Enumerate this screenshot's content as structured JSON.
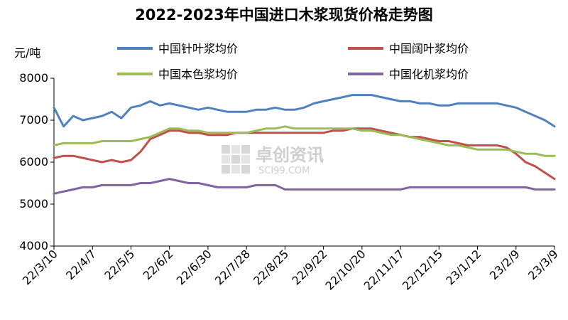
{
  "chart_data": {
    "type": "line",
    "title": "2022-2023年中国进口木浆现货价格走势图",
    "ylabel": "元/吨",
    "ylim": [
      4000,
      8000
    ],
    "yticks": [
      "8000",
      "7000",
      "6000",
      "5000",
      "4000"
    ],
    "xticks": [
      "22/3/10",
      "22/4/7",
      "22/5/5",
      "22/6/2",
      "22/6/30",
      "22/7/28",
      "22/8/25",
      "22/9/22",
      "22/10/20",
      "22/11/17",
      "22/12/15",
      "23/1/12",
      "23/2/9",
      "23/3/9"
    ],
    "grid": false,
    "legend_position": "top",
    "x": [
      "22/3/10",
      "22/3/17",
      "22/3/24",
      "22/3/31",
      "22/4/7",
      "22/4/14",
      "22/4/21",
      "22/4/28",
      "22/5/5",
      "22/5/12",
      "22/5/19",
      "22/5/26",
      "22/6/2",
      "22/6/9",
      "22/6/16",
      "22/6/23",
      "22/6/30",
      "22/7/7",
      "22/7/14",
      "22/7/21",
      "22/7/28",
      "22/8/4",
      "22/8/11",
      "22/8/18",
      "22/8/25",
      "22/9/1",
      "22/9/8",
      "22/9/15",
      "22/9/22",
      "22/9/29",
      "22/10/6",
      "22/10/13",
      "22/10/20",
      "22/10/27",
      "22/11/3",
      "22/11/10",
      "22/11/17",
      "22/11/24",
      "22/12/1",
      "22/12/8",
      "22/12/15",
      "22/12/22",
      "22/12/29",
      "23/1/5",
      "23/1/12",
      "23/1/19",
      "23/1/26",
      "23/2/2",
      "23/2/9",
      "23/2/16",
      "23/2/23",
      "23/3/2",
      "23/3/9"
    ],
    "series": [
      {
        "name": "中国针叶浆均价",
        "color": "#4f81bd",
        "values": [
          7300,
          6850,
          7100,
          7000,
          7050,
          7100,
          7200,
          7050,
          7300,
          7350,
          7450,
          7350,
          7400,
          7350,
          7300,
          7250,
          7300,
          7250,
          7200,
          7200,
          7200,
          7250,
          7250,
          7300,
          7250,
          7250,
          7300,
          7400,
          7450,
          7500,
          7550,
          7600,
          7600,
          7600,
          7550,
          7500,
          7450,
          7450,
          7400,
          7400,
          7350,
          7350,
          7400,
          7400,
          7400,
          7400,
          7400,
          7350,
          7300,
          7200,
          7100,
          7000,
          6850
        ]
      },
      {
        "name": "中国阔叶浆均价",
        "color": "#c0504d",
        "values": [
          6100,
          6150,
          6150,
          6100,
          6050,
          6000,
          6050,
          6000,
          6050,
          6250,
          6550,
          6650,
          6750,
          6750,
          6700,
          6700,
          6650,
          6650,
          6650,
          6700,
          6700,
          6700,
          6700,
          6700,
          6700,
          6700,
          6700,
          6700,
          6700,
          6750,
          6750,
          6800,
          6800,
          6800,
          6750,
          6700,
          6650,
          6600,
          6600,
          6550,
          6500,
          6500,
          6450,
          6400,
          6400,
          6400,
          6400,
          6350,
          6200,
          6000,
          5900,
          5750,
          5600
        ]
      },
      {
        "name": "中国本色浆均价",
        "color": "#9bbb59",
        "values": [
          6400,
          6450,
          6450,
          6450,
          6450,
          6500,
          6500,
          6500,
          6500,
          6550,
          6600,
          6700,
          6800,
          6800,
          6750,
          6750,
          6700,
          6700,
          6700,
          6700,
          6700,
          6750,
          6800,
          6800,
          6850,
          6800,
          6800,
          6800,
          6800,
          6800,
          6800,
          6800,
          6750,
          6750,
          6700,
          6650,
          6650,
          6600,
          6550,
          6500,
          6450,
          6400,
          6400,
          6350,
          6300,
          6300,
          6300,
          6300,
          6250,
          6200,
          6200,
          6150,
          6150
        ]
      },
      {
        "name": "中国化机浆均价",
        "color": "#8064a2",
        "values": [
          5250,
          5300,
          5350,
          5400,
          5400,
          5450,
          5450,
          5450,
          5450,
          5500,
          5500,
          5550,
          5600,
          5550,
          5500,
          5500,
          5450,
          5400,
          5400,
          5400,
          5400,
          5450,
          5450,
          5450,
          5350,
          5350,
          5350,
          5350,
          5350,
          5350,
          5350,
          5350,
          5350,
          5350,
          5350,
          5350,
          5350,
          5400,
          5400,
          5400,
          5400,
          5400,
          5400,
          5400,
          5400,
          5400,
          5400,
          5400,
          5400,
          5400,
          5350,
          5350,
          5350
        ]
      }
    ],
    "watermark": {
      "text": "卓创资讯",
      "sub": "SCI99.COM"
    }
  }
}
